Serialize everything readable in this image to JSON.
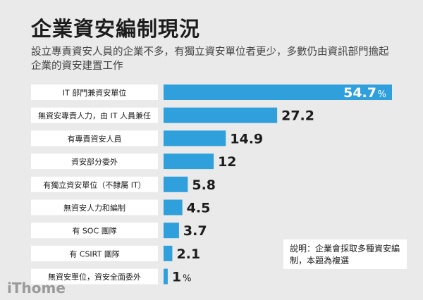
{
  "title": "企業資安編制現況",
  "subtitle": "設立專責資安人員的企業不多，有獨立資安單位者更少，多數仍由資訊部門擔起企業的資安建置工作",
  "note": "說明：企業會採取多種資安編制，本題為複選",
  "logo": "iThome",
  "colors": {
    "bar": "#2fa0dc",
    "background": "#eaeaea",
    "label_bg": "#ffffff"
  },
  "chart_data": {
    "type": "bar",
    "orientation": "horizontal",
    "unit": "%",
    "categories": [
      "IT 部門兼資安單位",
      "無資安專責人力，由 IT 人員兼任",
      "有專責資安人員",
      "資安部分委外",
      "有獨立資安單位（不隸屬 IT）",
      "無資安人力和編制",
      "有 SOC 團隊",
      "有 CSIRT 團隊",
      "無資安單位，資安全面委外"
    ],
    "values": [
      54.7,
      27.2,
      14.9,
      12,
      5.8,
      4.5,
      3.7,
      2.1,
      1
    ],
    "value_labels": [
      "54.7",
      "27.2",
      "14.9",
      "12",
      "5.8",
      "4.5",
      "3.7",
      "2.1",
      "1"
    ],
    "value_suffix": [
      "%",
      "",
      "",
      "",
      "",
      "",
      "",
      "",
      "%"
    ],
    "xlim": [
      0,
      54.7
    ],
    "grid": false,
    "legend": "none"
  }
}
